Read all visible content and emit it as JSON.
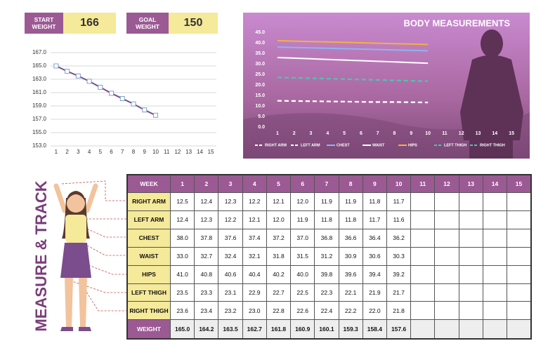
{
  "header": {
    "start_label": "START WEIGHT",
    "start_value": 166,
    "goal_label": "GOAL WEIGHT",
    "goal_value": 150,
    "side_title": "MEASURE & TRACK"
  },
  "table": {
    "week_label": "WEEK",
    "weight_label": "WEIGHT"
  },
  "chart_data": [
    {
      "type": "line",
      "categories": [
        "1",
        "2",
        "3",
        "4",
        "5",
        "6",
        "7",
        "8",
        "9",
        "10",
        "11",
        "12",
        "13",
        "14",
        "15"
      ],
      "values": [
        165.0,
        164.2,
        163.5,
        162.7,
        161.8,
        160.9,
        160.1,
        159.3,
        158.4,
        157.6,
        null,
        null,
        null,
        null,
        null
      ],
      "value_labels": [
        "165.0",
        "164.2",
        "163.5",
        "162.7",
        "161.8",
        "160.9",
        "160.1",
        "159.3",
        "158.4",
        "157.6",
        null,
        null,
        null,
        null,
        null
      ],
      "color": "#7b4d8c",
      "marker_color": "#7da0c8",
      "markers": true,
      "grid": true,
      "ylim": [
        153,
        167
      ],
      "yticks": [
        {
          "value": 153,
          "label": "153.0"
        },
        {
          "value": 155,
          "label": "155.0"
        },
        {
          "value": 157,
          "label": "157.0"
        },
        {
          "value": 159,
          "label": "159.0"
        },
        {
          "value": 161,
          "label": "161.0"
        },
        {
          "value": 163,
          "label": "163.0"
        },
        {
          "value": 165,
          "label": "165.0"
        },
        {
          "value": 167,
          "label": "167.0"
        }
      ]
    },
    {
      "type": "line",
      "title": "BODY MEASUREMENTS",
      "grid": false,
      "legend": "bottom",
      "categories": [
        "1",
        "2",
        "3",
        "4",
        "5",
        "6",
        "7",
        "8",
        "9",
        "10",
        "11",
        "12",
        "13",
        "14",
        "15"
      ],
      "ylim": [
        0,
        45
      ],
      "yticks": [
        {
          "value": 0,
          "label": "0.0"
        },
        {
          "value": 5,
          "label": "5.0"
        },
        {
          "value": 10,
          "label": "10.0"
        },
        {
          "value": 15,
          "label": "15.0"
        },
        {
          "value": 20,
          "label": "20.0"
        },
        {
          "value": 25,
          "label": "25.0"
        },
        {
          "value": 30,
          "label": "30.0"
        },
        {
          "value": 35,
          "label": "35.0"
        },
        {
          "value": 40,
          "label": "40.0"
        },
        {
          "value": 45,
          "label": "45.0"
        }
      ],
      "series": [
        {
          "name": "RIGHT ARM",
          "color": "#ffffff",
          "dashed": true,
          "values": [
            12.5,
            12.4,
            12.3,
            12.2,
            12.1,
            12.0,
            11.9,
            11.9,
            11.8,
            11.7,
            null,
            null,
            null,
            null,
            null
          ],
          "value_labels": [
            "12.5",
            "12.4",
            "12.3",
            "12.2",
            "12.1",
            "12.0",
            "11.9",
            "11.9",
            "11.8",
            "11.7",
            null,
            null,
            null,
            null,
            null
          ]
        },
        {
          "name": "LEFT ARM",
          "color": "#ffffff",
          "dashed": true,
          "values": [
            12.4,
            12.3,
            12.2,
            12.1,
            12.0,
            11.9,
            11.8,
            11.8,
            11.7,
            11.6,
            null,
            null,
            null,
            null,
            null
          ],
          "value_labels": [
            "12.4",
            "12.3",
            "12.2",
            "12.1",
            "12.0",
            "11.9",
            "11.8",
            "11.8",
            "11.7",
            "11.6",
            null,
            null,
            null,
            null,
            null
          ]
        },
        {
          "name": "CHEST",
          "color": "#8fb4f0",
          "dashed": false,
          "values": [
            38.0,
            37.8,
            37.6,
            37.4,
            37.2,
            37.0,
            36.8,
            36.6,
            36.4,
            36.2,
            null,
            null,
            null,
            null,
            null
          ],
          "value_labels": [
            "38.0",
            "37.8",
            "37.6",
            "37.4",
            "37.2",
            "37.0",
            "36.8",
            "36.6",
            "36.4",
            "36.2",
            null,
            null,
            null,
            null,
            null
          ]
        },
        {
          "name": "WAIST",
          "color": "#ffffff",
          "dashed": false,
          "values": [
            33.0,
            32.7,
            32.4,
            32.1,
            31.8,
            31.5,
            31.2,
            30.9,
            30.6,
            30.3,
            null,
            null,
            null,
            null,
            null
          ],
          "value_labels": [
            "33.0",
            "32.7",
            "32.4",
            "32.1",
            "31.8",
            "31.5",
            "31.2",
            "30.9",
            "30.6",
            "30.3",
            null,
            null,
            null,
            null,
            null
          ]
        },
        {
          "name": "HIPS",
          "color": "#f5b041",
          "dashed": false,
          "values": [
            41.0,
            40.8,
            40.6,
            40.4,
            40.2,
            40.0,
            39.8,
            39.6,
            39.4,
            39.2,
            null,
            null,
            null,
            null,
            null
          ],
          "value_labels": [
            "41.0",
            "40.8",
            "40.6",
            "40.4",
            "40.2",
            "40.0",
            "39.8",
            "39.6",
            "39.4",
            "39.2",
            null,
            null,
            null,
            null,
            null
          ]
        },
        {
          "name": "LEFT THIGH",
          "color": "#4fc3b0",
          "dashed": true,
          "values": [
            23.5,
            23.3,
            23.1,
            22.9,
            22.7,
            22.5,
            22.3,
            22.1,
            21.9,
            21.7,
            null,
            null,
            null,
            null,
            null
          ],
          "value_labels": [
            "23.5",
            "23.3",
            "23.1",
            "22.9",
            "22.7",
            "22.5",
            "22.3",
            "22.1",
            "21.9",
            "21.7",
            null,
            null,
            null,
            null,
            null
          ]
        },
        {
          "name": "RIGHT THIGH",
          "color": "#4fc3b0",
          "dashed": true,
          "values": [
            23.6,
            23.4,
            23.2,
            23.0,
            22.8,
            22.6,
            22.4,
            22.2,
            22.0,
            21.8,
            null,
            null,
            null,
            null,
            null
          ],
          "value_labels": [
            "23.6",
            "23.4",
            "23.2",
            "23.0",
            "22.8",
            "22.6",
            "22.4",
            "22.2",
            "22.0",
            "21.8",
            null,
            null,
            null,
            null,
            null
          ]
        }
      ]
    }
  ]
}
